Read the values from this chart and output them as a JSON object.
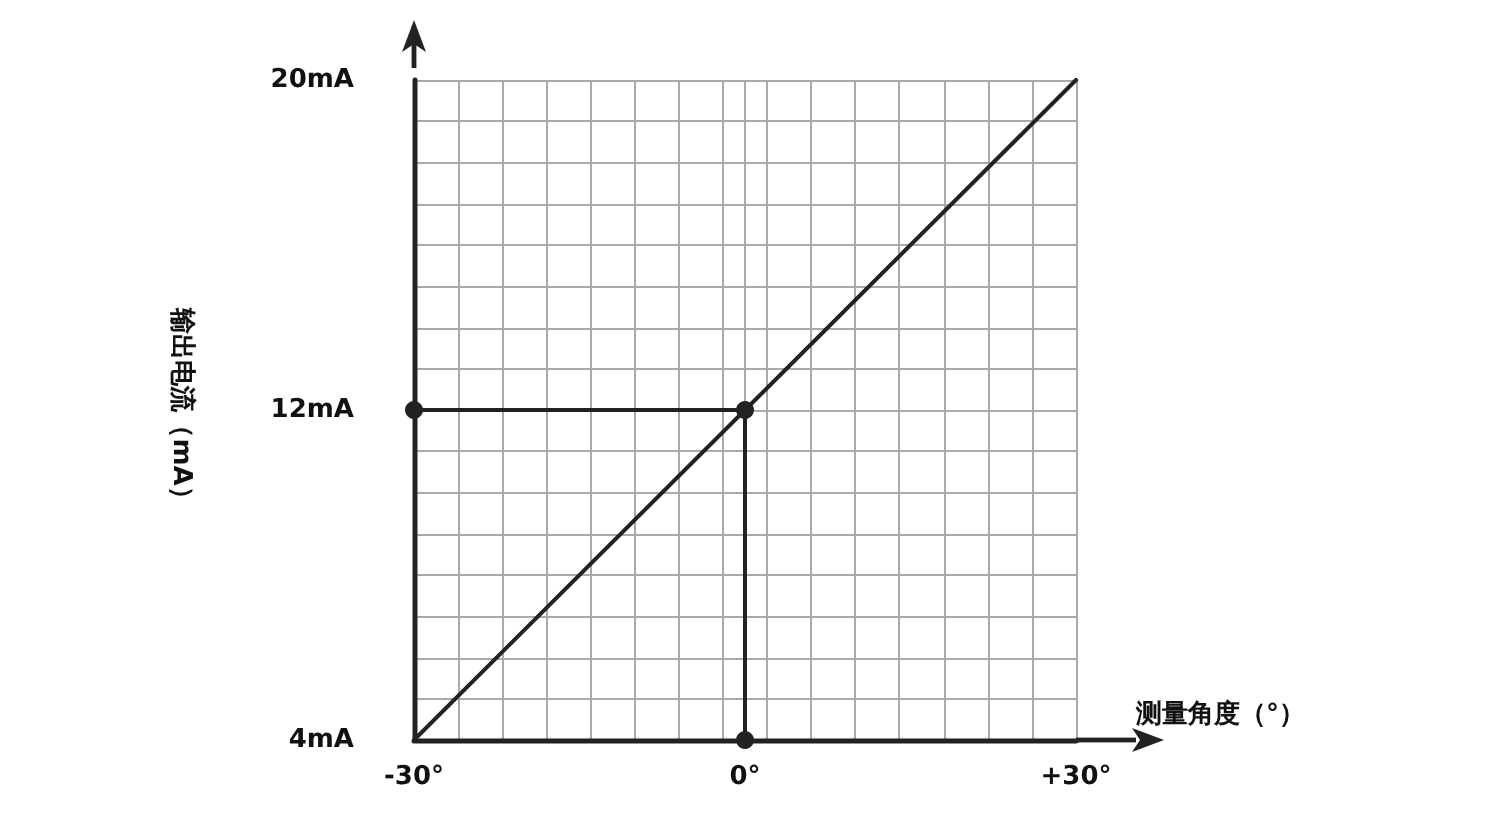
{
  "chart_data": {
    "type": "line",
    "xlabel": "测量角度（°）",
    "ylabel": "输出电流（mA）",
    "series": [
      {
        "color": "#222222",
        "x": [
          -30,
          0,
          30
        ],
        "values": [
          4,
          12,
          20
        ],
        "marker": "none"
      },
      {
        "color": "#222222",
        "x": [
          -30,
          0,
          0
        ],
        "values": [
          12,
          12,
          4
        ],
        "marker": "circle"
      }
    ],
    "xlim": [
      -30,
      30
    ],
    "ylim": [
      4,
      20
    ],
    "xticks": [
      {
        "value": -30,
        "label": "-30°"
      },
      {
        "value": -26,
        "label": null
      },
      {
        "value": -22,
        "label": null
      },
      {
        "value": -18,
        "label": null
      },
      {
        "value": -14,
        "label": null
      },
      {
        "value": -10,
        "label": null
      },
      {
        "value": -6,
        "label": null
      },
      {
        "value": -2,
        "label": null
      },
      {
        "value": 0,
        "label": "0°"
      },
      {
        "value": 2,
        "label": null
      },
      {
        "value": 6,
        "label": null
      },
      {
        "value": 10,
        "label": null
      },
      {
        "value": 14,
        "label": null
      },
      {
        "value": 18,
        "label": null
      },
      {
        "value": 22,
        "label": null
      },
      {
        "value": 26,
        "label": null
      },
      {
        "value": 30,
        "label": "+30°"
      }
    ],
    "yticks": [
      {
        "value": 4,
        "label": "4mA"
      },
      {
        "value": 5,
        "label": null
      },
      {
        "value": 6,
        "label": null
      },
      {
        "value": 7,
        "label": null
      },
      {
        "value": 8,
        "label": null
      },
      {
        "value": 9,
        "label": null
      },
      {
        "value": 10,
        "label": null
      },
      {
        "value": 11,
        "label": null
      },
      {
        "value": 12,
        "label": "12mA"
      },
      {
        "value": 13,
        "label": null
      },
      {
        "value": 14,
        "label": null
      },
      {
        "value": 15,
        "label": null
      },
      {
        "value": 16,
        "label": null
      },
      {
        "value": 17,
        "label": null
      },
      {
        "value": 18,
        "label": null
      },
      {
        "value": 19,
        "label": null
      },
      {
        "value": 20,
        "label": "20mA"
      }
    ],
    "grid": true
  }
}
